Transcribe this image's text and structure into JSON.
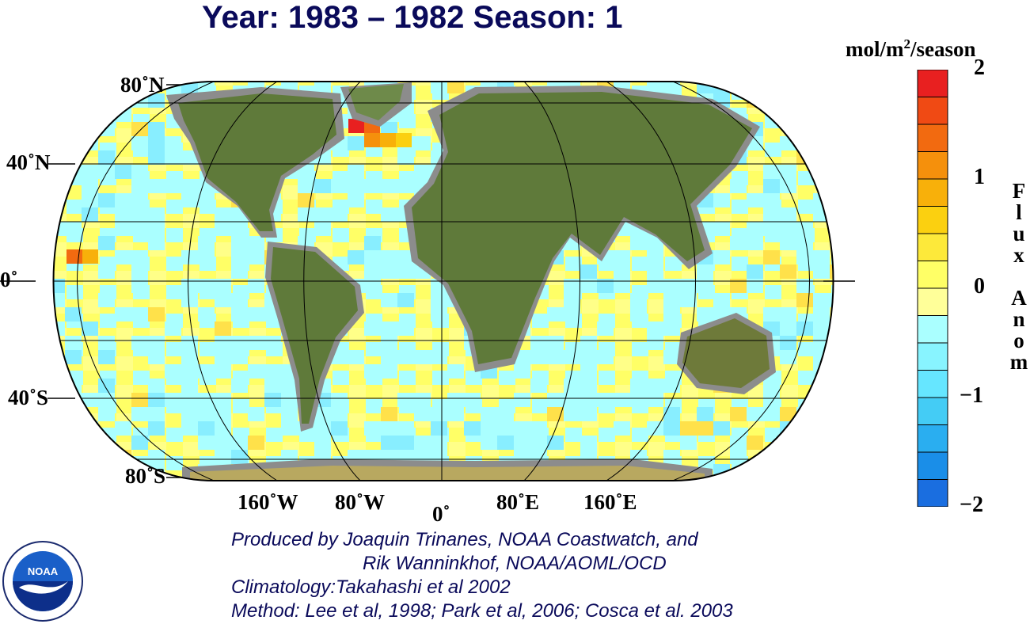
{
  "header": {
    "title": "Year: 1983 – 1982  Season: 1"
  },
  "map": {
    "projection": "eckert-like world",
    "ocean_colors": [
      "#ffff66",
      "#aaffff",
      "#88eeff",
      "#ffe14a"
    ],
    "land_color": "#5f7a3a",
    "missing_color": "#8c8c8c",
    "lat_labels": {
      "n80": "80˚N",
      "n40": "40˚N",
      "eq": "0˚",
      "s40": "40˚S",
      "s80": "80˚S"
    },
    "lon_labels": {
      "w160": "160˚W",
      "w80": "80˚W",
      "zero": "0˚",
      "e80": "80˚E",
      "e160": "160˚E"
    }
  },
  "colorbar": {
    "units_main": "mol/m",
    "units_sup": "2",
    "units_tail": "/season",
    "ticks": {
      "top": "2",
      "one": "1",
      "zero": "0",
      "neg_one": "−1",
      "bottom": "−2"
    },
    "range": [
      -2,
      2
    ],
    "label_letters": [
      "F",
      "l",
      "u",
      "x",
      "",
      "A",
      "n",
      "o",
      "m"
    ],
    "colors": [
      "#e82020",
      "#f04a14",
      "#f26a10",
      "#f5900c",
      "#f8b00a",
      "#fbd010",
      "#fde93a",
      "#ffff66",
      "#ffff99",
      "#aaffff",
      "#88f4ff",
      "#66e6ff",
      "#44ccf5",
      "#2aaef0",
      "#1a8ee8",
      "#1a6ee0"
    ]
  },
  "credits": {
    "line1": "Produced by Joaquin Trinanes, NOAA Coastwatch, and",
    "line2": "Rik Wanninkhof, NOAA/AOML/OCD",
    "line3": "Climatology:Takahashi et al 2002",
    "line4": "Method: Lee et al, 1998; Park et al, 2006; Cosca et al. 2003"
  },
  "logo": {
    "text": "NOAA"
  }
}
